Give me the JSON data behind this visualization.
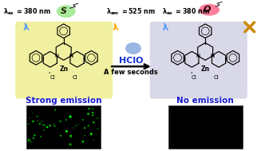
{
  "bg_color": "#ffffff",
  "left_box_color": "#f0f0a0",
  "right_box_color": "#d8d8e8",
  "left_label": "Strong emission",
  "right_label": "No emission",
  "label_color": "#1a1acc",
  "arrow_label_top": "HClO",
  "arrow_label_bottom": "A few seconds",
  "s_bubble_color": "#a0e890",
  "o_bubble_color": "#ff7090",
  "lightning_blue": "#5599ff",
  "lightning_gold": "#ffaa00",
  "x_color": "#cc8800",
  "drop_color": "#88aadd",
  "hclo_color": "#1133cc",
  "green_dot_color": "#00ee00"
}
